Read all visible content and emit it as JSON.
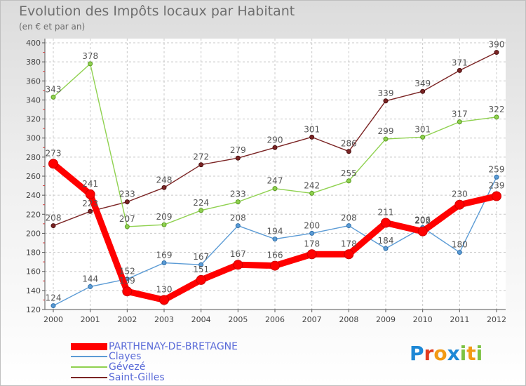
{
  "chart_data": {
    "type": "line",
    "title": "Evolution des Impôts locaux par Habitant",
    "subtitle": "(en € et par an)",
    "categories": [
      "2000",
      "2001",
      "2002",
      "2003",
      "2004",
      "2005",
      "2006",
      "2007",
      "2008",
      "2009",
      "2010",
      "2011",
      "2012"
    ],
    "ylim": [
      120,
      400
    ],
    "yticks": [
      120,
      140,
      160,
      180,
      200,
      220,
      240,
      260,
      280,
      300,
      320,
      340,
      360,
      380,
      400
    ],
    "grid": true,
    "legend_position": "bottom-left",
    "series": [
      {
        "name": "PARTHENAY-DE-BRETAGNE",
        "color": "#ff0000",
        "values": [
          273,
          241,
          139,
          130,
          151,
          167,
          166,
          178,
          178,
          211,
          202,
          230,
          239
        ],
        "labels": [
          "273",
          "241",
          "139",
          "130",
          "151",
          "167",
          "166",
          "178",
          "178",
          "211",
          "202",
          "230",
          "239"
        ]
      },
      {
        "name": "Clayes",
        "color": "#5b9bd5",
        "values": [
          124,
          144,
          152,
          169,
          167,
          208,
          194,
          200,
          208,
          184,
          206,
          180,
          259
        ],
        "labels": [
          "124",
          "144",
          "152",
          "169",
          "167",
          "208",
          "194",
          "200",
          "208",
          "184",
          "206",
          "180",
          "259"
        ]
      },
      {
        "name": "Gévezé",
        "color": "#8fd14f",
        "values": [
          343,
          378,
          207,
          209,
          224,
          233,
          247,
          242,
          255,
          299,
          301,
          317,
          322
        ],
        "labels": [
          "343",
          "378",
          "207",
          "209",
          "224",
          "233",
          "247",
          "242",
          "255",
          "299",
          "301",
          "317",
          "322"
        ]
      },
      {
        "name": "Saint-Gilles",
        "color": "#7b2424",
        "values": [
          208,
          223,
          233,
          248,
          272,
          279,
          290,
          301,
          286,
          339,
          349,
          371,
          390
        ],
        "labels": [
          "208",
          "223",
          "233",
          "248",
          "272",
          "279",
          "290",
          "301",
          "286",
          "339",
          "349",
          "371",
          "390"
        ]
      }
    ]
  },
  "brand": {
    "name": "Proxiti",
    "letters": [
      {
        "ch": "P",
        "color": "#1e88d6"
      },
      {
        "ch": "r",
        "color": "#e23a1e"
      },
      {
        "ch": "o",
        "color": "#f29a14"
      },
      {
        "ch": "x",
        "color": "#1e88d6"
      },
      {
        "ch": "i",
        "color": "#7cc242"
      },
      {
        "ch": "t",
        "color": "#f29a14"
      },
      {
        "ch": "i",
        "color": "#7cc242"
      }
    ]
  }
}
